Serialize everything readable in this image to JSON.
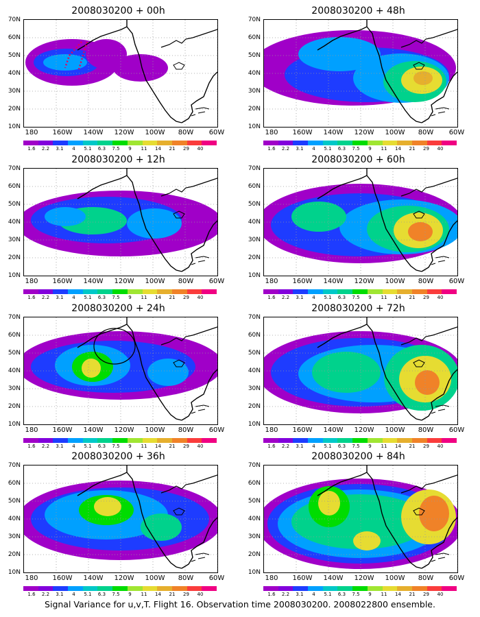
{
  "panels": [
    {
      "title": "2008030200 + 00h"
    },
    {
      "title": "2008030200 + 48h"
    },
    {
      "title": "2008030200 + 12h"
    },
    {
      "title": "2008030200 + 60h"
    },
    {
      "title": "2008030200 + 24h"
    },
    {
      "title": "2008030200 + 72h"
    },
    {
      "title": "2008030200 + 36h"
    },
    {
      "title": "2008030200 + 84h"
    }
  ],
  "lat_labels": [
    "70N",
    "60N",
    "50N",
    "40N",
    "30N",
    "20N",
    "10N"
  ],
  "lon_labels": [
    "180",
    "160W",
    "140W",
    "120W",
    "100W",
    "80W",
    "60W"
  ],
  "colorbar": {
    "labels": [
      "1.6",
      "2.2",
      "3.1",
      "4",
      "5.1",
      "6.3",
      "7.5",
      "9",
      "11",
      "14",
      "21",
      "29",
      "40"
    ],
    "colors": [
      "#a000c8",
      "#8200dc",
      "#1e3cff",
      "#00a0ff",
      "#00c8c8",
      "#00d28c",
      "#00dc00",
      "#a0e632",
      "#e6dc32",
      "#e6af2d",
      "#f08228",
      "#fa3c3c",
      "#f00082"
    ]
  },
  "caption": "Signal Variance for u,v,T. Flight 16. Observation time 2008030200. 2008022800 ensemble.",
  "annotations": {
    "panel_00h_flight_track_color": "#e6005a",
    "panel_24h_circle": true
  }
}
